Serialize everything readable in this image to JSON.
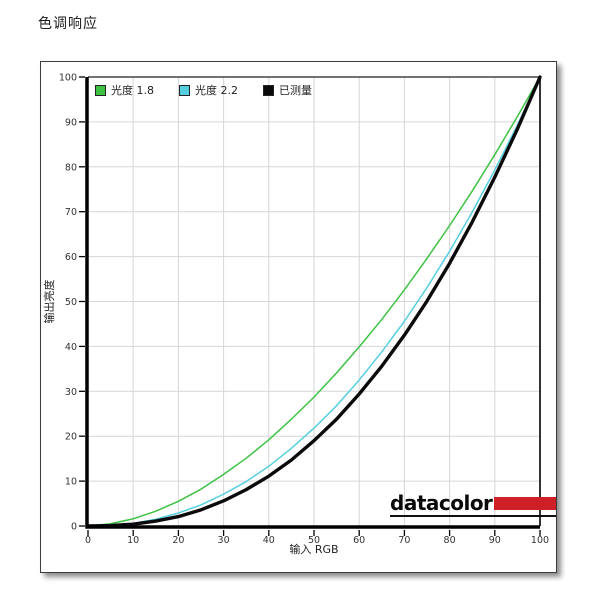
{
  "page": {
    "title": "色调响应"
  },
  "logo": {
    "text": "datacolor",
    "accent_color": "#d02027"
  },
  "colors": {
    "grid": "#d6d6d6",
    "axis": "#000000",
    "border": "#3c3c3c",
    "gamma18": "#3dc243",
    "gamma22": "#55cfdf",
    "measured": "#0a0a0a"
  },
  "chart_data": {
    "type": "line",
    "title": "色调响应",
    "xlabel": "输入  RGB",
    "ylabel": "输出亮度",
    "xlim": [
      0,
      100
    ],
    "ylim": [
      0,
      100
    ],
    "x_ticks": [
      0,
      10,
      20,
      30,
      40,
      50,
      60,
      70,
      80,
      90,
      100
    ],
    "y_ticks": [
      0,
      10,
      20,
      30,
      40,
      50,
      60,
      70,
      80,
      90,
      100
    ],
    "grid": true,
    "legend_position": "top-left-inside",
    "x": [
      0,
      5,
      10,
      15,
      20,
      25,
      30,
      35,
      40,
      45,
      50,
      55,
      60,
      65,
      70,
      75,
      80,
      85,
      90,
      95,
      100
    ],
    "series": [
      {
        "name": "光度 1.8",
        "color": "#3dc243",
        "values": [
          0,
          0.5,
          1.6,
          3.3,
          5.5,
          8.2,
          11.5,
          15.1,
          19.2,
          23.8,
          28.7,
          34.1,
          39.9,
          46.0,
          52.6,
          59.6,
          66.9,
          74.6,
          82.7,
          91.2,
          100
        ]
      },
      {
        "name": "光度 2.2",
        "color": "#55cfdf",
        "values": [
          0,
          0.1,
          0.6,
          1.5,
          2.9,
          4.7,
          7.1,
          9.9,
          13.3,
          17.3,
          21.8,
          26.8,
          32.5,
          38.8,
          45.6,
          53.1,
          61.2,
          69.9,
          79.3,
          89.3,
          100
        ]
      },
      {
        "name": "已测量",
        "color": "#0a0a0a",
        "values": [
          0,
          0.1,
          0.4,
          1.1,
          2.1,
          3.6,
          5.6,
          8.1,
          11.1,
          14.7,
          19.0,
          23.8,
          29.4,
          35.6,
          42.5,
          50.1,
          58.5,
          67.7,
          77.7,
          88.4,
          100
        ]
      }
    ]
  }
}
